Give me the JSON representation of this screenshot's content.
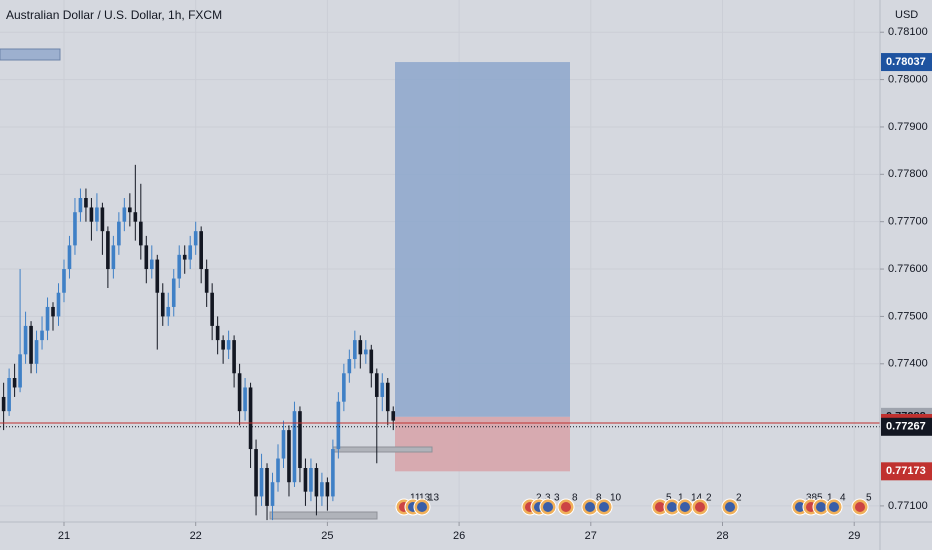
{
  "chart_data": {
    "type": "candlestick",
    "title": "Australian Dollar / U.S. Dollar, 1h, FXCM",
    "y_unit": "USD",
    "up_color": "#3f80c6",
    "down_color": "#131722",
    "candles": [
      [
        0.7733,
        0.7736,
        0.7726,
        0.773
      ],
      [
        0.773,
        0.7739,
        0.7729,
        0.7737
      ],
      [
        0.7737,
        0.774,
        0.7733,
        0.7735
      ],
      [
        0.7735,
        0.776,
        0.7734,
        0.7742
      ],
      [
        0.7742,
        0.7751,
        0.774,
        0.7748
      ],
      [
        0.7748,
        0.7749,
        0.7738,
        0.774
      ],
      [
        0.774,
        0.7747,
        0.7738,
        0.7745
      ],
      [
        0.7745,
        0.775,
        0.7743,
        0.7747
      ],
      [
        0.7747,
        0.7754,
        0.7745,
        0.7752
      ],
      [
        0.7752,
        0.7753,
        0.7747,
        0.775
      ],
      [
        0.775,
        0.7757,
        0.7748,
        0.7755
      ],
      [
        0.7755,
        0.7762,
        0.7753,
        0.776
      ],
      [
        0.776,
        0.7767,
        0.7758,
        0.7765
      ],
      [
        0.7765,
        0.7775,
        0.7763,
        0.7772
      ],
      [
        0.7772,
        0.7777,
        0.777,
        0.7775
      ],
      [
        0.7775,
        0.7777,
        0.777,
        0.7773
      ],
      [
        0.7773,
        0.7775,
        0.7766,
        0.777
      ],
      [
        0.777,
        0.7776,
        0.7768,
        0.7773
      ],
      [
        0.7773,
        0.7774,
        0.7763,
        0.7768
      ],
      [
        0.7768,
        0.7769,
        0.7756,
        0.776
      ],
      [
        0.776,
        0.7767,
        0.7758,
        0.7765
      ],
      [
        0.7765,
        0.7772,
        0.7763,
        0.777
      ],
      [
        0.777,
        0.7775,
        0.7768,
        0.7773
      ],
      [
        0.7773,
        0.7776,
        0.7769,
        0.7772
      ],
      [
        0.7772,
        0.7782,
        0.7766,
        0.777
      ],
      [
        0.777,
        0.7778,
        0.7762,
        0.7765
      ],
      [
        0.7765,
        0.7767,
        0.7757,
        0.776
      ],
      [
        0.776,
        0.7765,
        0.7758,
        0.7762
      ],
      [
        0.7762,
        0.7763,
        0.7743,
        0.7755
      ],
      [
        0.7755,
        0.7757,
        0.7748,
        0.775
      ],
      [
        0.775,
        0.7755,
        0.7748,
        0.7752
      ],
      [
        0.7752,
        0.776,
        0.775,
        0.7758
      ],
      [
        0.7758,
        0.7765,
        0.7756,
        0.7763
      ],
      [
        0.7763,
        0.7765,
        0.7759,
        0.7762
      ],
      [
        0.7762,
        0.7767,
        0.776,
        0.7765
      ],
      [
        0.7765,
        0.777,
        0.7763,
        0.7768
      ],
      [
        0.7768,
        0.7769,
        0.7757,
        0.776
      ],
      [
        0.776,
        0.7762,
        0.7752,
        0.7755
      ],
      [
        0.7755,
        0.7757,
        0.7745,
        0.7748
      ],
      [
        0.7748,
        0.775,
        0.7742,
        0.7745
      ],
      [
        0.7745,
        0.7746,
        0.774,
        0.7743
      ],
      [
        0.7743,
        0.7747,
        0.7741,
        0.7745
      ],
      [
        0.7745,
        0.7746,
        0.7735,
        0.7738
      ],
      [
        0.7738,
        0.774,
        0.7727,
        0.773
      ],
      [
        0.773,
        0.7737,
        0.7728,
        0.7735
      ],
      [
        0.7735,
        0.7736,
        0.7718,
        0.7722
      ],
      [
        0.7722,
        0.7724,
        0.7708,
        0.7712
      ],
      [
        0.7712,
        0.7721,
        0.771,
        0.7718
      ],
      [
        0.7718,
        0.7719,
        0.7707,
        0.771
      ],
      [
        0.771,
        0.7717,
        0.7707,
        0.7715
      ],
      [
        0.7715,
        0.7723,
        0.7713,
        0.772
      ],
      [
        0.772,
        0.7728,
        0.7718,
        0.7726
      ],
      [
        0.7726,
        0.7727,
        0.7712,
        0.7715
      ],
      [
        0.7715,
        0.7732,
        0.7714,
        0.773
      ],
      [
        0.773,
        0.7731,
        0.7715,
        0.7718
      ],
      [
        0.7718,
        0.772,
        0.771,
        0.7713
      ],
      [
        0.7713,
        0.772,
        0.7711,
        0.7718
      ],
      [
        0.7718,
        0.7719,
        0.7708,
        0.7712
      ],
      [
        0.7712,
        0.7717,
        0.771,
        0.7715
      ],
      [
        0.7715,
        0.7716,
        0.7709,
        0.7712
      ],
      [
        0.7712,
        0.7724,
        0.7711,
        0.7722
      ],
      [
        0.7722,
        0.7734,
        0.772,
        0.7732
      ],
      [
        0.7732,
        0.774,
        0.773,
        0.7738
      ],
      [
        0.7738,
        0.7743,
        0.7736,
        0.7741
      ],
      [
        0.7741,
        0.7747,
        0.7739,
        0.7745
      ],
      [
        0.7745,
        0.7746,
        0.7739,
        0.7742
      ],
      [
        0.7742,
        0.7745,
        0.774,
        0.7743
      ],
      [
        0.7743,
        0.7744,
        0.7735,
        0.7738
      ],
      [
        0.7738,
        0.7739,
        0.7719,
        0.7733
      ],
      [
        0.7733,
        0.7738,
        0.773,
        0.7736
      ],
      [
        0.7736,
        0.7737,
        0.7727,
        0.773
      ],
      [
        0.773,
        0.7731,
        0.7726,
        0.7728
      ]
    ],
    "xlim": [
      -0.66,
      159.7
    ],
    "xticks": [
      {
        "value": 11,
        "label": "21"
      },
      {
        "value": 35,
        "label": "22"
      },
      {
        "value": 59,
        "label": "25"
      },
      {
        "value": 83,
        "label": "26"
      },
      {
        "value": 107,
        "label": "27"
      },
      {
        "value": 131,
        "label": "28"
      },
      {
        "value": 155,
        "label": "29"
      }
    ],
    "ylim": [
      0.77066,
      0.78168
    ],
    "yticks": [
      {
        "value": 0.781,
        "label": "0.78100"
      },
      {
        "value": 0.78,
        "label": "0.78000"
      },
      {
        "value": 0.779,
        "label": "0.77900"
      },
      {
        "value": 0.778,
        "label": "0.77800"
      },
      {
        "value": 0.777,
        "label": "0.77700"
      },
      {
        "value": 0.776,
        "label": "0.77600"
      },
      {
        "value": 0.775,
        "label": "0.77500"
      },
      {
        "value": 0.774,
        "label": "0.77400"
      },
      {
        "value": 0.771,
        "label": "0.77100"
      }
    ],
    "grid": true,
    "position": {
      "target": 0.78037,
      "entry": 0.77288,
      "stop": 0.77173,
      "target_color": "#8da7cc",
      "stop_color": "#d7a5ab"
    },
    "alert_line": 0.77275,
    "last_price": 0.77267,
    "events": [
      "11",
      "13",
      "13",
      "2",
      "3",
      "3",
      "8",
      "8",
      "10",
      "5",
      "1",
      "14",
      "2",
      "2",
      "38",
      "5",
      "1",
      "4",
      "5"
    ]
  }
}
